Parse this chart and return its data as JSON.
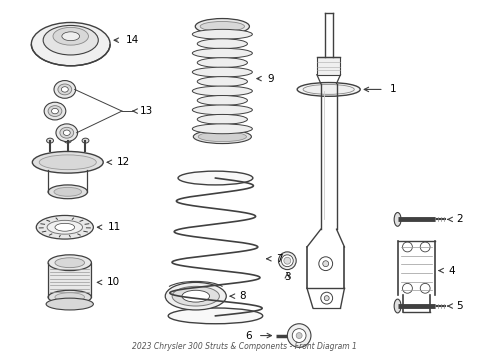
{
  "title": "2023 Chrysler 300 Struts & Components - Front Diagram 1",
  "background_color": "#ffffff",
  "line_color": "#404040",
  "label_color": "#000000",
  "fig_width": 4.89,
  "fig_height": 3.6,
  "dpi": 100
}
